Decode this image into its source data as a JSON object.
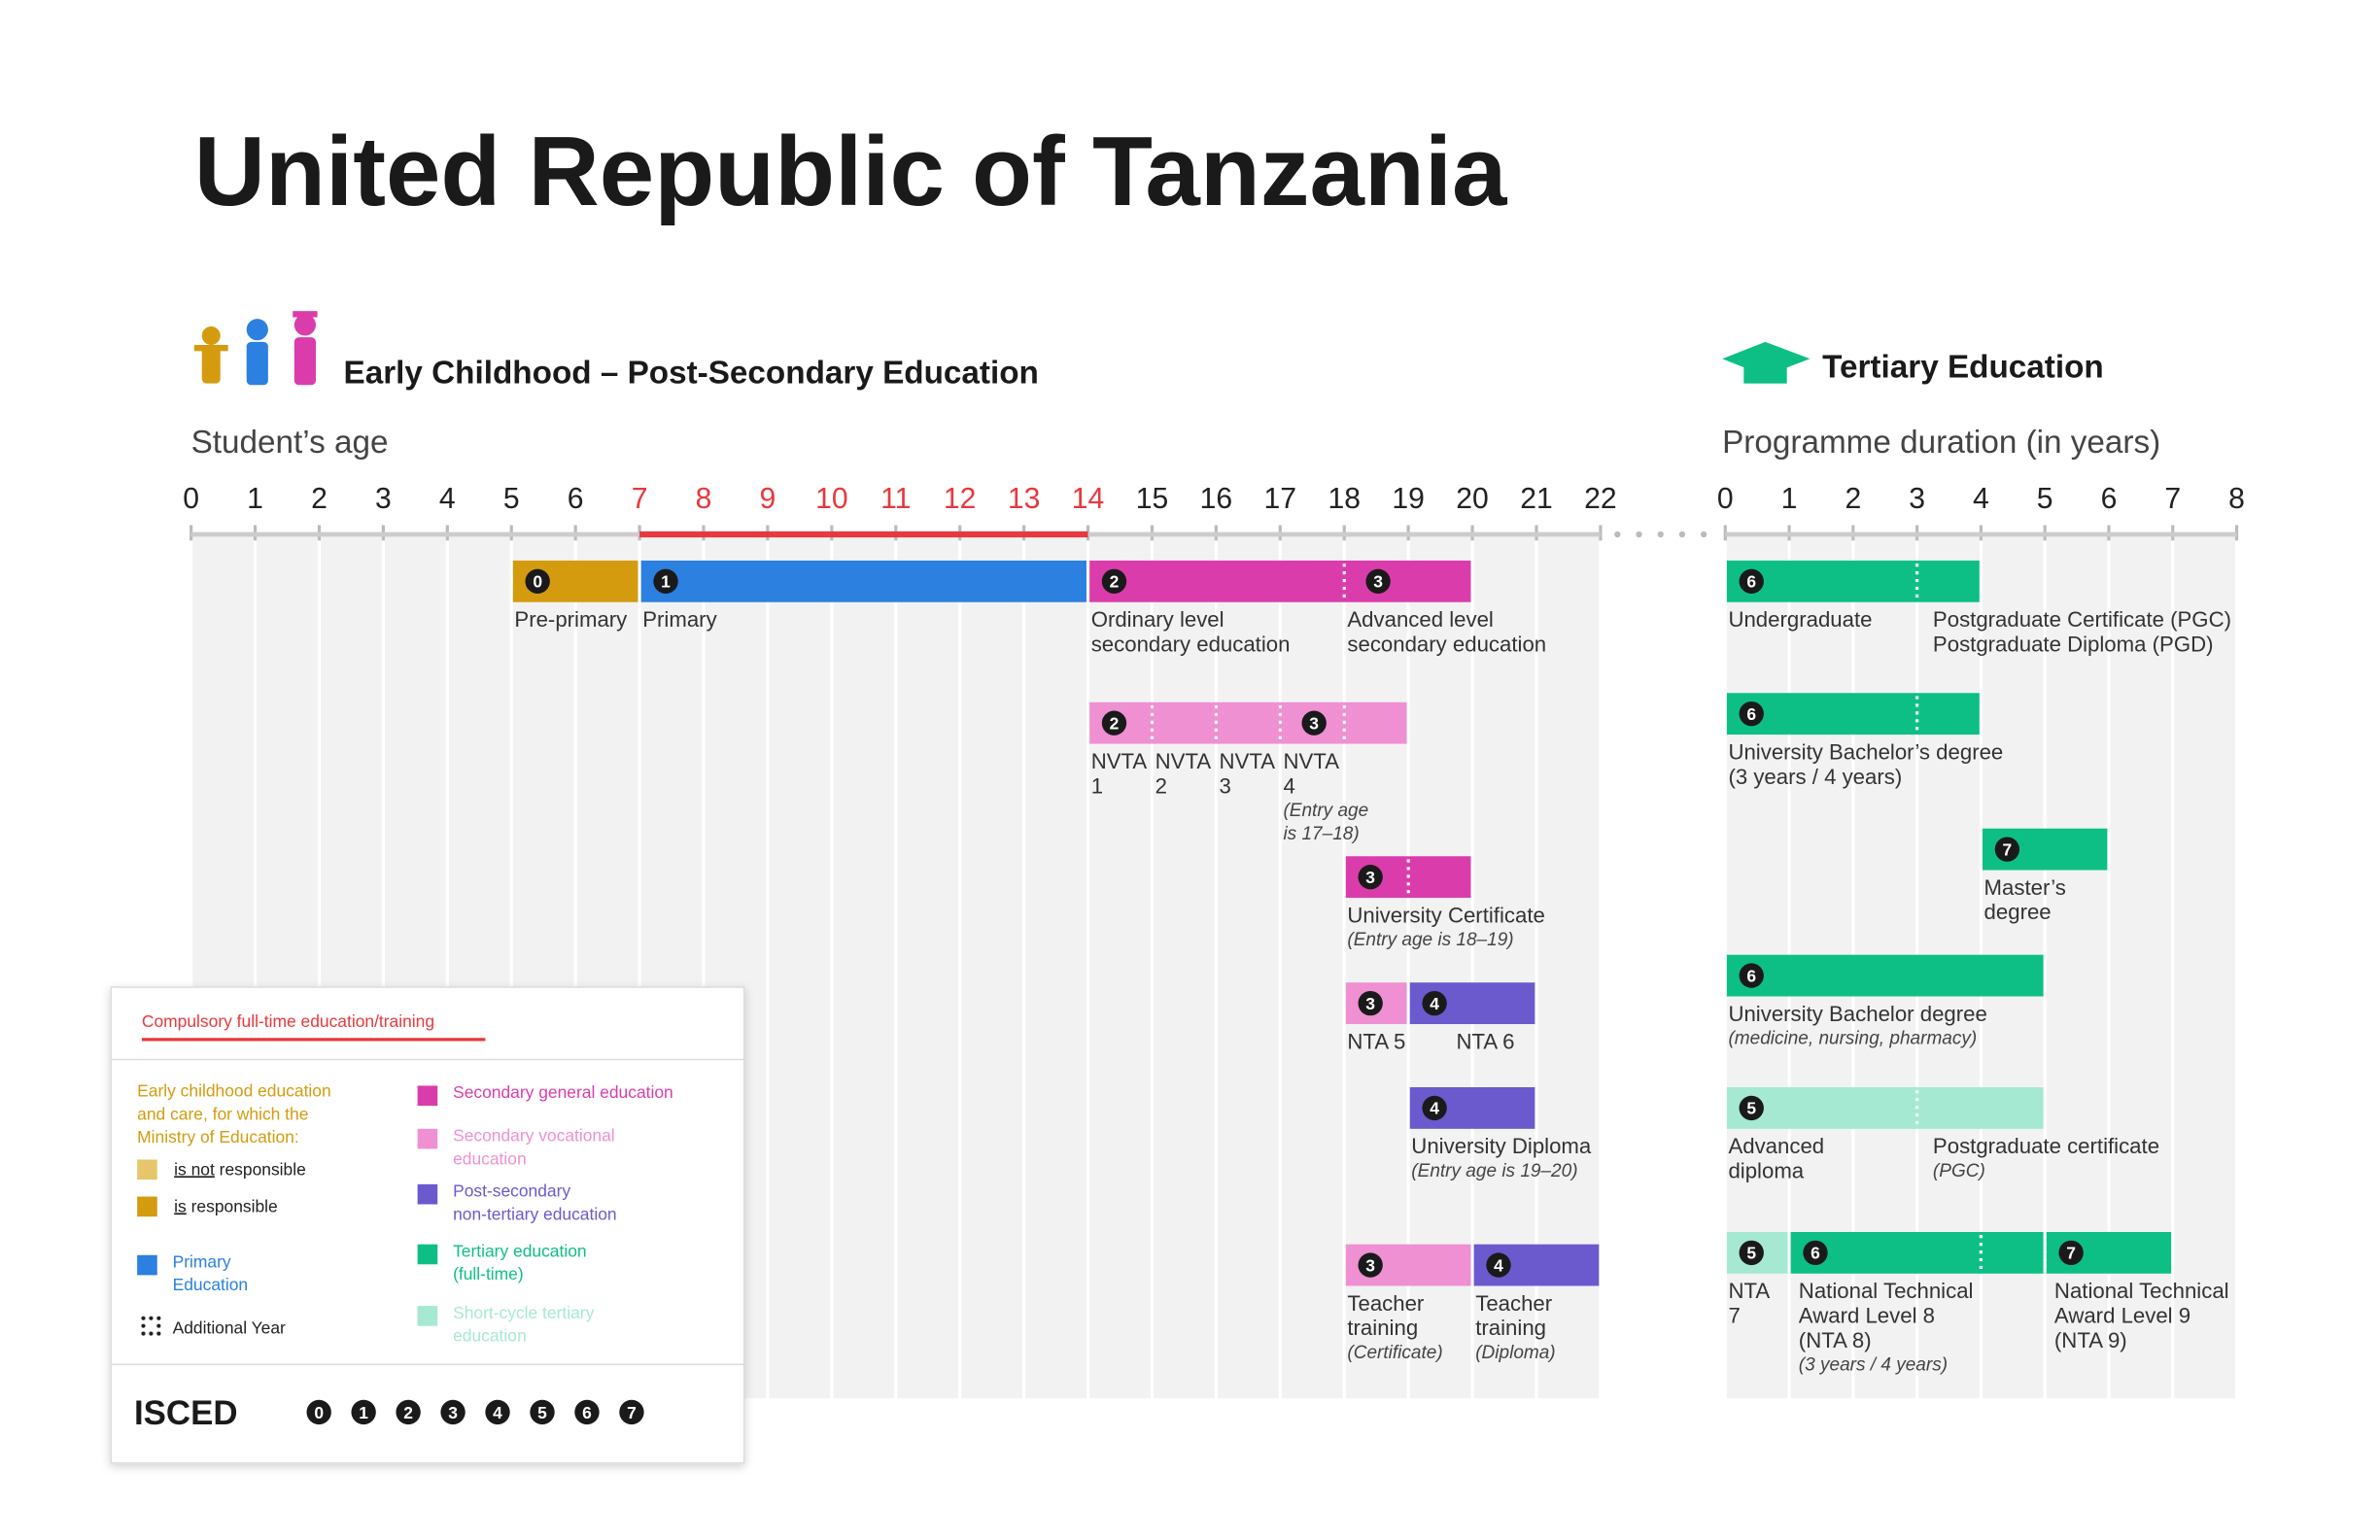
{
  "title": "United Republic of Tanzania",
  "sections": {
    "left": {
      "heading": "Early Childhood – Post-Secondary Education",
      "axis_label": "Student’s age"
    },
    "right": {
      "heading": "Tertiary Education",
      "axis_label": "Programme duration (in years)"
    }
  },
  "age_ticks": [
    0,
    1,
    2,
    3,
    4,
    5,
    6,
    7,
    8,
    9,
    10,
    11,
    12,
    13,
    14,
    15,
    16,
    17,
    18,
    19,
    20,
    21,
    22
  ],
  "compulsory": [
    7,
    14
  ],
  "compulsory_color": "#e8383d",
  "duration_ticks": [
    0,
    1,
    2,
    3,
    4,
    5,
    6,
    7,
    8
  ],
  "age_programmes": [
    {
      "segments": [
        {
          "start": 5,
          "end": 7,
          "color": "#d49b0f",
          "isced": 0
        },
        {
          "start": 7,
          "end": 14,
          "color": "#2b80e0",
          "isced": 1
        },
        {
          "start": 14,
          "end": 20,
          "color": "#db3cac",
          "isced": 2
        }
      ],
      "badges": [
        {
          "at": 18,
          "isced": 3
        }
      ],
      "dividers": [
        18
      ],
      "labels": [
        {
          "at": 5,
          "lines": [
            "Pre-primary"
          ]
        },
        {
          "at": 7,
          "lines": [
            "Primary"
          ]
        },
        {
          "at": 14,
          "lines": [
            "Ordinary level",
            "secondary education"
          ]
        },
        {
          "at": 18,
          "lines": [
            "Advanced level",
            "secondary education"
          ]
        }
      ]
    },
    {
      "segments": [
        {
          "start": 14,
          "end": 19,
          "color": "#ee90d2",
          "isced": 2
        }
      ],
      "badges": [
        {
          "at": 17,
          "isced": 3
        }
      ],
      "dividers": [
        15,
        16,
        17,
        18
      ],
      "labels": [
        {
          "at": 14,
          "lines": [
            "NVTA",
            "1"
          ]
        },
        {
          "at": 15,
          "lines": [
            "NVTA",
            "2"
          ]
        },
        {
          "at": 16,
          "lines": [
            "NVTA",
            "3"
          ]
        },
        {
          "at": 17,
          "lines": [
            "NVTA",
            "4"
          ],
          "note": [
            "(Entry age",
            "is 17–18)"
          ]
        }
      ]
    },
    {
      "segments": [
        {
          "start": 18,
          "end": 20,
          "color": "#db3cac",
          "isced": 3
        }
      ],
      "badges": [],
      "dividers": [
        19
      ],
      "labels": [
        {
          "at": 18,
          "lines": [
            "University Certificate"
          ],
          "note": [
            "(Entry age is 18–19)"
          ]
        }
      ]
    },
    {
      "segments": [
        {
          "start": 18,
          "end": 19,
          "color": "#ee90d2",
          "isced": 3
        },
        {
          "start": 19,
          "end": 21,
          "color": "#6a5acd",
          "isced": 4
        }
      ],
      "badges": [],
      "dividers": [],
      "labels": [
        {
          "at": 18,
          "lines": [
            "NTA 5"
          ]
        },
        {
          "at": 19.7,
          "lines": [
            "NTA 6"
          ]
        }
      ]
    },
    {
      "segments": [
        {
          "start": 19,
          "end": 21,
          "color": "#6a5acd",
          "isced": 4
        }
      ],
      "badges": [],
      "dividers": [],
      "labels": [
        {
          "at": 19,
          "lines": [
            "University Diploma"
          ],
          "note": [
            "(Entry age is 19–20)"
          ]
        }
      ]
    },
    {
      "segments": [
        {
          "start": 18,
          "end": 20,
          "color": "#ee90d2",
          "isced": 3
        },
        {
          "start": 20,
          "end": 22,
          "color": "#6a5acd",
          "isced": 4
        }
      ],
      "badges": [],
      "dividers": [],
      "labels": [
        {
          "at": 18,
          "lines": [
            "Teacher",
            "training"
          ],
          "note": [
            "(Certificate)"
          ]
        },
        {
          "at": 20,
          "lines": [
            "Teacher",
            "training"
          ],
          "note": [
            "(Diploma)"
          ]
        }
      ]
    }
  ],
  "tertiary_programmes": [
    {
      "segments": [
        {
          "start": 0,
          "end": 4,
          "color": "#0dbf85",
          "isced": 6
        }
      ],
      "badges": [],
      "dividers": [
        3
      ],
      "labels": [
        {
          "at": 0,
          "lines": [
            "Undergraduate"
          ]
        },
        {
          "at": 3.2,
          "lines": [
            "Postgraduate Certificate (PGC)",
            "Postgraduate Diploma (PGD)"
          ]
        }
      ]
    },
    {
      "segments": [
        {
          "start": 0,
          "end": 4,
          "color": "#0dbf85",
          "isced": 6
        }
      ],
      "badges": [],
      "dividers": [
        3
      ],
      "labels": [
        {
          "at": 0,
          "lines": [
            "University Bachelor’s degree",
            "(3 years / 4 years)"
          ]
        }
      ]
    },
    {
      "segments": [
        {
          "start": 4,
          "end": 6,
          "color": "#0dbf85",
          "isced": 7
        }
      ],
      "badges": [],
      "dividers": [],
      "labels": [
        {
          "at": 4,
          "lines": [
            "Master’s",
            "degree"
          ]
        }
      ]
    },
    {
      "segments": [
        {
          "start": 0,
          "end": 5,
          "color": "#0dbf85",
          "isced": 6
        }
      ],
      "badges": [],
      "dividers": [],
      "labels": [
        {
          "at": 0,
          "lines": [
            "University Bachelor degree"
          ],
          "note": [
            "(medicine, nursing, pharmacy)"
          ]
        }
      ]
    },
    {
      "segments": [
        {
          "start": 0,
          "end": 5,
          "color": "#a6e9d2",
          "isced": 5
        }
      ],
      "badges": [],
      "dividers": [
        3
      ],
      "labels": [
        {
          "at": 0,
          "lines": [
            "Advanced",
            "diploma"
          ]
        },
        {
          "at": 3.2,
          "lines": [
            "Postgraduate certificate"
          ],
          "note": [
            "(PGC)"
          ]
        }
      ]
    },
    {
      "segments": [
        {
          "start": 0,
          "end": 1,
          "color": "#a6e9d2",
          "isced": 5
        },
        {
          "start": 1,
          "end": 5,
          "color": "#0dbf85",
          "isced": 6
        },
        {
          "start": 5,
          "end": 7,
          "color": "#0dbf85",
          "isced": 7
        }
      ],
      "badges": [],
      "dividers": [
        4,
        5
      ],
      "labels": [
        {
          "at": 0,
          "lines": [
            "NTA",
            "7"
          ]
        },
        {
          "at": 1.1,
          "lines": [
            "National Technical",
            "Award Level 8",
            "(NTA 8)"
          ],
          "note": [
            "(3 years / 4 years)"
          ]
        },
        {
          "at": 5.1,
          "lines": [
            "National Technical",
            "Award Level 9",
            "(NTA 9)"
          ]
        }
      ]
    }
  ],
  "legend": {
    "compulsory": "Compulsory full-time education/training",
    "ecec_heading": [
      "Early childhood education",
      "and care, for which the",
      "Ministry of Education:"
    ],
    "ecec_color": "#d49b0f",
    "ecec_items": [
      {
        "emph": "is not",
        "text": " responsible",
        "color": "#e6c56b"
      },
      {
        "emph": "is",
        "text": " responsible",
        "color": "#d49b0f"
      }
    ],
    "left_items": [
      {
        "lines": [
          "Primary",
          "Education"
        ],
        "color": "#2b80e0"
      }
    ],
    "additional_year": "Additional Year",
    "right_items": [
      {
        "lines": [
          "Secondary general education"
        ],
        "color": "#db3cac"
      },
      {
        "lines": [
          "Secondary vocational",
          "education"
        ],
        "color": "#ee90d2"
      },
      {
        "lines": [
          "Post-secondary",
          "non-tertiary education"
        ],
        "color": "#6a5acd"
      },
      {
        "lines": [
          "Tertiary education",
          "(full-time)"
        ],
        "color": "#0dbf85"
      },
      {
        "lines": [
          "Short-cycle tertiary",
          "education"
        ],
        "color": "#a6e9d2"
      }
    ],
    "isced_label": "ISCED",
    "isced_levels": [
      0,
      1,
      2,
      3,
      4,
      5,
      6,
      7
    ]
  }
}
